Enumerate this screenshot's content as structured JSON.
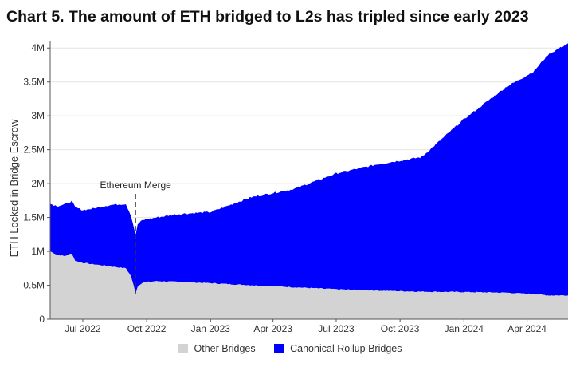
{
  "title": "Chart 5. The amount of ETH bridged to L2s has tripled since early 2023",
  "chart_data": {
    "type": "area",
    "stacked": true,
    "ylabel": "ETH Locked in Bridge Escrow",
    "ylim": [
      0,
      4050000
    ],
    "yticks": [
      0,
      500000,
      1000000,
      1500000,
      2000000,
      2500000,
      3000000,
      3500000,
      4000000
    ],
    "ytick_labels": [
      "0",
      "0.5M",
      "1M",
      "1.5M",
      "2M",
      "2.5M",
      "3M",
      "3.5M",
      "4M"
    ],
    "xlim": [
      "2022-05-15",
      "2024-05-30"
    ],
    "xtick_dates": [
      "2022-07-01",
      "2022-10-01",
      "2023-01-01",
      "2023-04-01",
      "2023-07-01",
      "2023-10-01",
      "2024-01-01",
      "2024-04-01"
    ],
    "xtick_labels": [
      "Jul 2022",
      "Oct 2022",
      "Jan 2023",
      "Apr 2023",
      "Jul 2023",
      "Oct 2023",
      "Jan 2024",
      "Apr 2024"
    ],
    "grid": "horizontal",
    "legend_position": "bottom",
    "annotation": {
      "text": "Ethereum Merge",
      "date": "2022-09-15"
    },
    "series": [
      {
        "name": "Other Bridges",
        "color": "#d3d3d3",
        "points": [
          [
            "2022-05-15",
            1000000
          ],
          [
            "2022-05-25",
            950000
          ],
          [
            "2022-06-05",
            930000
          ],
          [
            "2022-06-15",
            970000
          ],
          [
            "2022-06-20",
            860000
          ],
          [
            "2022-07-01",
            830000
          ],
          [
            "2022-07-15",
            810000
          ],
          [
            "2022-08-01",
            790000
          ],
          [
            "2022-08-15",
            770000
          ],
          [
            "2022-09-01",
            750000
          ],
          [
            "2022-09-08",
            640000
          ],
          [
            "2022-09-12",
            500000
          ],
          [
            "2022-09-15",
            380000
          ],
          [
            "2022-09-18",
            480000
          ],
          [
            "2022-09-25",
            540000
          ],
          [
            "2022-10-15",
            560000
          ],
          [
            "2022-11-15",
            550000
          ],
          [
            "2023-01-01",
            530000
          ],
          [
            "2023-03-01",
            500000
          ],
          [
            "2023-05-01",
            470000
          ],
          [
            "2023-07-01",
            440000
          ],
          [
            "2023-09-01",
            420000
          ],
          [
            "2023-11-01",
            405000
          ],
          [
            "2024-01-01",
            400000
          ],
          [
            "2024-03-01",
            390000
          ],
          [
            "2024-04-10",
            370000
          ],
          [
            "2024-05-01",
            350000
          ],
          [
            "2024-05-30",
            350000
          ]
        ]
      },
      {
        "name": "Canonical Rollup Bridges",
        "color": "#0000ff",
        "points": [
          [
            "2022-05-15",
            700000
          ],
          [
            "2022-05-25",
            720000
          ],
          [
            "2022-06-05",
            760000
          ],
          [
            "2022-06-15",
            770000
          ],
          [
            "2022-06-20",
            790000
          ],
          [
            "2022-07-01",
            780000
          ],
          [
            "2022-07-15",
            820000
          ],
          [
            "2022-08-01",
            880000
          ],
          [
            "2022-08-15",
            920000
          ],
          [
            "2022-09-01",
            950000
          ],
          [
            "2022-09-08",
            900000
          ],
          [
            "2022-09-12",
            880000
          ],
          [
            "2022-09-15",
            850000
          ],
          [
            "2022-09-18",
            920000
          ],
          [
            "2022-09-25",
            920000
          ],
          [
            "2022-10-15",
            940000
          ],
          [
            "2022-11-15",
            1000000
          ],
          [
            "2023-01-01",
            1050000
          ],
          [
            "2023-03-01",
            1300000
          ],
          [
            "2023-05-01",
            1450000
          ],
          [
            "2023-07-01",
            1710000
          ],
          [
            "2023-09-01",
            1870000
          ],
          [
            "2023-11-01",
            1985000
          ],
          [
            "2024-01-01",
            2550000
          ],
          [
            "2024-03-01",
            3030000
          ],
          [
            "2024-04-10",
            3280000
          ],
          [
            "2024-05-01",
            3550000
          ],
          [
            "2024-05-30",
            3720000
          ]
        ]
      }
    ]
  }
}
